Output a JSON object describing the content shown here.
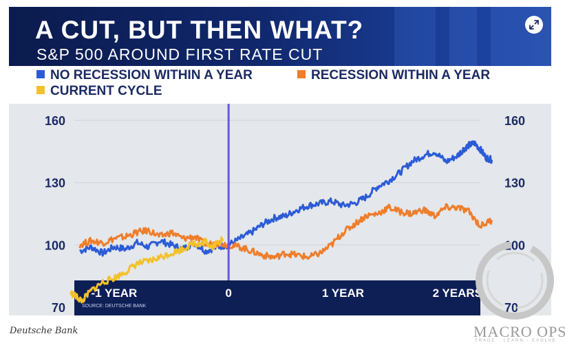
{
  "header": {
    "title": "A CUT, BUT THEN WHAT?",
    "subtitle": "S&P 500 AROUND FIRST RATE CUT",
    "expand_icon": "expand-arrows-icon"
  },
  "legend": [
    {
      "label": "NO RECESSION WITHIN A YEAR",
      "color": "#2c5bd6"
    },
    {
      "label": "RECESSION WITHIN A YEAR",
      "color": "#ef7d2a"
    },
    {
      "label": "CURRENT CYCLE",
      "color": "#f2c12b"
    }
  ],
  "source": "SOURCE: DEUTSCHE BANK",
  "caption": "Deutsche Bank",
  "logo": {
    "name": "MACRO OPS",
    "tagline": "TRADE · LEARN · EVOLVE"
  },
  "chart_data": {
    "type": "line",
    "title": "A CUT, BUT THEN WHAT?",
    "subtitle": "S&P 500 AROUND FIRST RATE CUT",
    "xlabel": "",
    "ylabel": "",
    "x_unit": "years relative to first rate cut",
    "xlim": [
      -1.45,
      2.35
    ],
    "ylim": [
      66,
      168
    ],
    "y_ticks": [
      70,
      100,
      130,
      160
    ],
    "y_tick_labels": [
      "70",
      "100",
      "130",
      "160"
    ],
    "x_ticks": [
      -1,
      0,
      1,
      2
    ],
    "x_tick_labels": [
      "-1 YEAR",
      "0",
      "1 YEAR",
      "2 YEARS"
    ],
    "vertical_line_at": 0,
    "grid": "horizontal",
    "series": [
      {
        "name": "NO RECESSION WITHIN A YEAR",
        "color": "#2c5bd6",
        "x": [
          -1.3,
          -1.2,
          -1.1,
          -1.0,
          -0.9,
          -0.8,
          -0.7,
          -0.6,
          -0.5,
          -0.4,
          -0.3,
          -0.2,
          -0.1,
          0.0,
          0.1,
          0.2,
          0.3,
          0.4,
          0.5,
          0.6,
          0.7,
          0.8,
          0.9,
          1.0,
          1.1,
          1.2,
          1.3,
          1.4,
          1.5,
          1.6,
          1.7,
          1.8,
          1.9,
          2.0,
          2.05,
          2.1,
          2.15,
          2.2,
          2.25,
          2.3
        ],
        "y": [
          97,
          99,
          96,
          99,
          98,
          101,
          99,
          102,
          100,
          98,
          101,
          97,
          99,
          100,
          103,
          106,
          110,
          113,
          114,
          117,
          119,
          120,
          121,
          119,
          120,
          123,
          128,
          131,
          135,
          140,
          143,
          145,
          140,
          143,
          146,
          148,
          149,
          146,
          142,
          141
        ]
      },
      {
        "name": "RECESSION WITHIN A YEAR",
        "color": "#ef7d2a",
        "x": [
          -1.3,
          -1.2,
          -1.1,
          -1.0,
          -0.9,
          -0.8,
          -0.7,
          -0.6,
          -0.5,
          -0.4,
          -0.3,
          -0.2,
          -0.1,
          0.0,
          0.1,
          0.2,
          0.3,
          0.4,
          0.5,
          0.6,
          0.7,
          0.8,
          0.9,
          1.0,
          1.1,
          1.2,
          1.3,
          1.4,
          1.5,
          1.6,
          1.7,
          1.8,
          1.9,
          2.0,
          2.1,
          2.2,
          2.3
        ],
        "y": [
          100,
          102,
          101,
          103,
          104,
          106,
          107,
          104,
          106,
          103,
          104,
          100,
          101,
          100,
          99,
          97,
          95,
          94,
          96,
          95,
          94,
          96,
          100,
          106,
          110,
          114,
          115,
          118,
          116,
          115,
          117,
          114,
          118,
          118,
          116,
          109,
          112
        ]
      },
      {
        "name": "CURRENT CYCLE",
        "color": "#f2c12b",
        "x": [
          -1.38,
          -1.33,
          -1.28,
          -1.2,
          -1.1,
          -1.0,
          -0.9,
          -0.8,
          -0.7,
          -0.6,
          -0.5,
          -0.4,
          -0.3,
          -0.25,
          -0.2,
          -0.15,
          -0.1,
          -0.05
        ],
        "y": [
          77,
          75,
          73,
          78,
          82,
          84,
          87,
          91,
          92,
          94,
          96,
          98,
          101,
          100,
          102,
          99,
          101,
          103
        ]
      }
    ]
  }
}
